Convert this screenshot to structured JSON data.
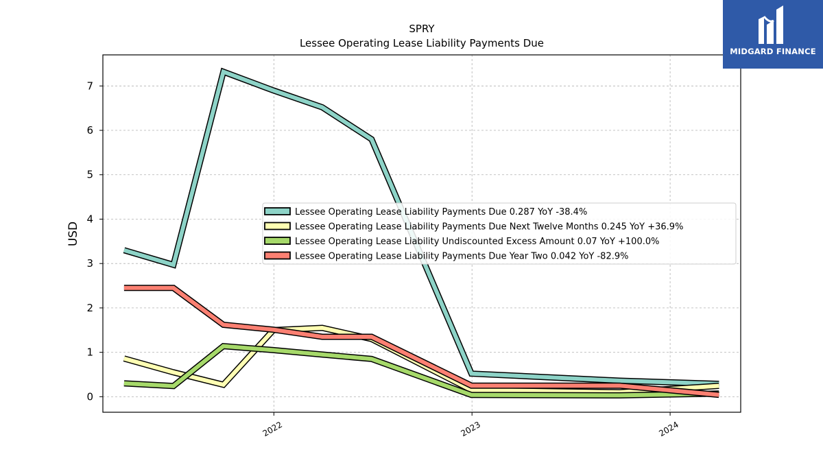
{
  "chart_data": {
    "type": "line",
    "title": "SPRY",
    "subtitle": "Lessee Operating Lease Liability Payments Due",
    "ylabel": "USD",
    "xlabel": "",
    "ylim": [
      -0.35,
      7.7
    ],
    "xlim": [
      "2021-02-20",
      "2024-05-10"
    ],
    "yticks": [
      0,
      1,
      2,
      3,
      4,
      5,
      6,
      7
    ],
    "xticks": [
      {
        "date": "2022-01-01",
        "label": "2022"
      },
      {
        "date": "2023-01-01",
        "label": "2023"
      },
      {
        "date": "2024-01-01",
        "label": "2024"
      }
    ],
    "grid": true,
    "legend_position": "center-right",
    "x": [
      "2021-03-31",
      "2021-06-30",
      "2021-09-30",
      "2021-12-31",
      "2022-03-31",
      "2022-06-30",
      "2022-12-31",
      "2023-09-30",
      "2024-03-31"
    ],
    "series": [
      {
        "name": "Lessee Operating Lease Liability Payments Due  0.287 YoY -38.4%",
        "color": "#8dd3c7",
        "values": [
          3.3,
          2.97,
          7.32,
          6.9,
          6.52,
          5.8,
          0.52,
          0.36,
          0.29
        ]
      },
      {
        "name": "Lessee Operating Lease Liability Payments Due Next Twelve Months  0.245 YoY +36.9%",
        "color": "#ffffb3",
        "values": [
          0.86,
          0.55,
          0.27,
          1.5,
          1.55,
          1.3,
          0.15,
          0.1,
          0.245
        ]
      },
      {
        "name": "Lessee Operating Lease Liability Undiscounted Excess Amount  0.07 YoY +100.0%",
        "color": "#a6d96a",
        "values": [
          0.3,
          0.24,
          1.14,
          1.05,
          0.95,
          0.85,
          0.04,
          0.03,
          0.07
        ]
      },
      {
        "name": "Lessee Operating Lease Liability Payments Due Year Two  0.042 YoY -82.9%",
        "color": "#fb8072",
        "values": [
          2.45,
          2.45,
          1.62,
          1.51,
          1.35,
          1.35,
          0.25,
          0.25,
          0.042
        ]
      }
    ]
  },
  "logo": {
    "text": "MIDGARD FINANCE",
    "background": "#2f5aa8"
  }
}
